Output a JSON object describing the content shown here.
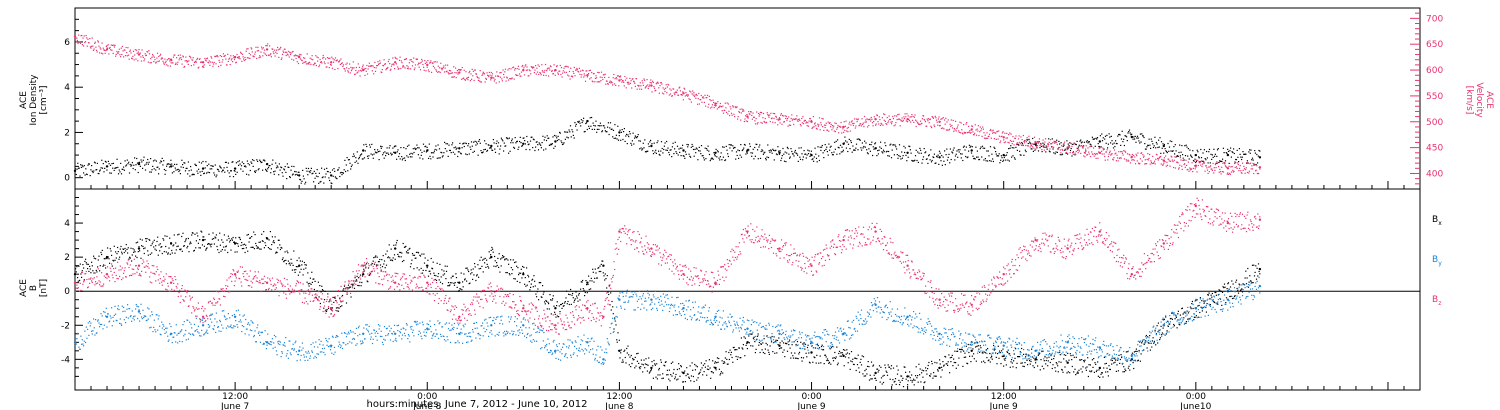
{
  "colors": {
    "density": "#000000",
    "velocity": "#e8336e",
    "bx": "#000000",
    "by": "#1a84d6",
    "bz": "#e8336e"
  },
  "x_axis": {
    "label": "hours:minutes, June  7, 2012 - June 10, 2012",
    "ticks": [
      {
        "t": 12,
        "time": "12:00",
        "date": "June 7"
      },
      {
        "t": 24,
        "time": "0:00",
        "date": "June 8"
      },
      {
        "t": 36,
        "time": "12:00",
        "date": "June 8"
      },
      {
        "t": 48,
        "time": "0:00",
        "date": "June 9"
      },
      {
        "t": 60,
        "time": "12:00",
        "date": "June 9"
      },
      {
        "t": 72,
        "time": "0:00",
        "date": "June10"
      }
    ],
    "range_hours": [
      2,
      86
    ]
  },
  "chart_data": [
    {
      "type": "scatter",
      "panel": "top",
      "ylabel_left": [
        "ACE",
        "Ion Density",
        "[cm⁻³]"
      ],
      "ylabel_right": [
        "ACE",
        "Velocity",
        "[km/s]"
      ],
      "ylim_left": [
        -0.5,
        7.5
      ],
      "ylim_right": [
        370,
        720
      ],
      "left_ticks": [
        0,
        2,
        4,
        6
      ],
      "right_ticks": [
        400,
        450,
        500,
        550,
        600,
        650,
        700
      ],
      "grid": false,
      "series": [
        {
          "key": "density",
          "axis": "left",
          "x": [
            2,
            4,
            6,
            8,
            10,
            12,
            14,
            16,
            18,
            20,
            22,
            24,
            26,
            28,
            30,
            32,
            34,
            36,
            38,
            40,
            42,
            44,
            46,
            48,
            50,
            52,
            54,
            56,
            58,
            60,
            62,
            64,
            66,
            68,
            70,
            72,
            74,
            76
          ],
          "y": [
            0.3,
            0.5,
            0.6,
            0.5,
            0.4,
            0.4,
            0.6,
            0.1,
            0.1,
            1.2,
            1.1,
            1.2,
            1.3,
            1.4,
            1.5,
            1.6,
            2.5,
            2.0,
            1.4,
            1.2,
            1.1,
            1.2,
            1.1,
            1.0,
            1.5,
            1.3,
            1.1,
            0.9,
            1.2,
            1.0,
            1.5,
            1.3,
            1.6,
            1.8,
            1.4,
            1.0,
            1.0,
            0.9
          ]
        },
        {
          "key": "velocity",
          "axis": "right",
          "x": [
            2,
            4,
            6,
            8,
            10,
            12,
            14,
            16,
            18,
            20,
            22,
            24,
            26,
            28,
            30,
            32,
            34,
            36,
            38,
            40,
            42,
            44,
            46,
            48,
            50,
            52,
            54,
            56,
            58,
            60,
            62,
            64,
            66,
            68,
            70,
            72,
            74,
            76
          ],
          "y": [
            665,
            640,
            630,
            620,
            615,
            625,
            640,
            625,
            615,
            600,
            615,
            610,
            595,
            585,
            600,
            600,
            590,
            580,
            570,
            555,
            535,
            510,
            505,
            500,
            490,
            505,
            505,
            500,
            485,
            470,
            460,
            450,
            440,
            432,
            425,
            415,
            410,
            412
          ]
        }
      ]
    },
    {
      "type": "scatter",
      "panel": "bottom",
      "ylabel_left": [
        "ACE",
        "B",
        "[nT]"
      ],
      "ylim": [
        -5.8,
        6.0
      ],
      "ticks": [
        -4,
        -2,
        0,
        2,
        4
      ],
      "zero_line": true,
      "legend": [
        "B",
        "B",
        "B"
      ],
      "legend_subscripts": [
        "x",
        "y",
        "z"
      ],
      "series": [
        {
          "key": "bx",
          "name": "Bx",
          "x": [
            2,
            4,
            6,
            8,
            10,
            12,
            14,
            16,
            18,
            20,
            22,
            24,
            26,
            28,
            30,
            32,
            34,
            35,
            36,
            38,
            40,
            42,
            44,
            46,
            48,
            50,
            52,
            54,
            56,
            58,
            60,
            62,
            64,
            66,
            68,
            70,
            72,
            74,
            76
          ],
          "y": [
            1.0,
            2.0,
            2.5,
            2.8,
            3.0,
            2.8,
            3.1,
            1.5,
            -1.0,
            1.0,
            2.5,
            1.5,
            0.5,
            2.0,
            1.0,
            -1.0,
            0.5,
            1.5,
            -3.5,
            -4.5,
            -4.8,
            -4.5,
            -3.0,
            -3.2,
            -3.6,
            -3.8,
            -4.8,
            -5.0,
            -4.5,
            -3.5,
            -3.8,
            -4.0,
            -4.2,
            -4.5,
            -4.0,
            -2.0,
            -1.0,
            0.0,
            1.3
          ]
        },
        {
          "key": "by",
          "name": "By",
          "x": [
            2,
            4,
            6,
            8,
            10,
            12,
            14,
            16,
            18,
            20,
            22,
            24,
            26,
            28,
            30,
            32,
            34,
            35,
            36,
            38,
            40,
            42,
            44,
            46,
            48,
            50,
            52,
            54,
            56,
            58,
            60,
            62,
            64,
            66,
            68,
            70,
            72,
            74,
            76
          ],
          "y": [
            -3.0,
            -1.5,
            -1.2,
            -2.5,
            -2.0,
            -1.5,
            -3.0,
            -3.5,
            -3.2,
            -2.5,
            -2.5,
            -2.2,
            -2.5,
            -2.0,
            -2.0,
            -3.5,
            -3.0,
            -4.0,
            -0.5,
            -0.5,
            -1.0,
            -1.5,
            -2.2,
            -2.5,
            -3.0,
            -2.5,
            -0.8,
            -1.5,
            -2.5,
            -3.0,
            -3.2,
            -3.5,
            -3.0,
            -3.3,
            -3.8,
            -2.0,
            -1.0,
            -0.5,
            0.3
          ]
        },
        {
          "key": "bz",
          "name": "Bz",
          "x": [
            2,
            4,
            6,
            8,
            10,
            12,
            14,
            16,
            18,
            20,
            22,
            24,
            26,
            28,
            30,
            32,
            34,
            35,
            36,
            38,
            40,
            42,
            44,
            46,
            48,
            50,
            52,
            54,
            56,
            58,
            60,
            62,
            64,
            66,
            68,
            70,
            72,
            74,
            76
          ],
          "y": [
            0.5,
            1.0,
            1.5,
            0.5,
            -1.5,
            1.0,
            0.5,
            0.0,
            -1.0,
            1.5,
            0.5,
            0.5,
            -1.5,
            0.0,
            -1.0,
            -2.0,
            -1.0,
            -1.5,
            3.5,
            2.5,
            1.0,
            0.5,
            3.5,
            2.5,
            1.5,
            3.0,
            3.5,
            1.5,
            -0.5,
            -0.8,
            1.0,
            3.0,
            2.5,
            3.5,
            1.0,
            2.8,
            5.0,
            4.0,
            4.2
          ]
        }
      ]
    }
  ]
}
